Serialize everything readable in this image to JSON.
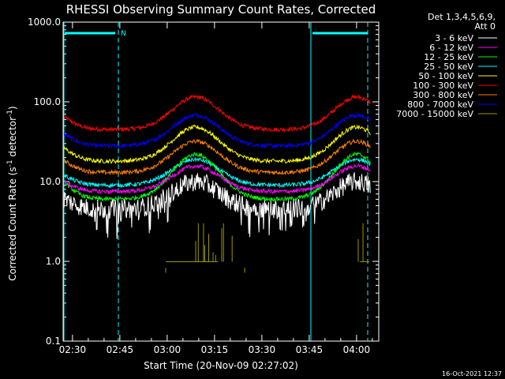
{
  "chart_data": {
    "type": "line",
    "title": "RHESSI Observing Summary Count Rates, Corrected",
    "xlabel": "Start Time (20-Nov-09 02:27:02)",
    "ylabel": "Corrected Count Rate (s⁻¹ detector⁻¹)",
    "ylabel_main": "Corrected Count Rate (s",
    "ylabel_sup1": "-1",
    "ylabel_mid": " detector",
    "ylabel_sup2": "-1",
    "ylabel_end": ")",
    "y_scale": "log",
    "ylim": [
      0.1,
      1000
    ],
    "xlim_minutes": [
      0,
      100
    ],
    "x_ticks": [
      "02:30",
      "02:45",
      "03:00",
      "03:15",
      "03:30",
      "03:45",
      "04:00"
    ],
    "y_ticks": [
      "0.1",
      "1.0",
      "10.0",
      "100.0",
      "1000.0"
    ],
    "grid": false,
    "legend_position": "top-right",
    "legend_header_1": "Det 1,3,4,5,6,9,",
    "legend_header_2": "Att 0",
    "timestamp": "16-Oct-2021 12:37",
    "night_marker": "N",
    "series": [
      {
        "name": "3 - 6 keV",
        "color": "#ffffff",
        "night": 4.5,
        "peak": 10
      },
      {
        "name": "6 - 12 keV",
        "color": "#ff00ff",
        "night": 7.5,
        "peak": 16
      },
      {
        "name": "12 - 25 keV",
        "color": "#00ff00",
        "night": 6,
        "peak": 22
      },
      {
        "name": "25 - 50 keV",
        "color": "#00ffff",
        "night": 9,
        "peak": 19
      },
      {
        "name": "50 - 100 keV",
        "color": "#ffff00",
        "night": 18,
        "peak": 48
      },
      {
        "name": "100 - 300 keV",
        "color": "#ff0000",
        "night": 45,
        "peak": 115
      },
      {
        "name": "300 - 800 keV",
        "color": "#ff8000",
        "night": 13,
        "peak": 32
      },
      {
        "name": "800 - 7000 keV",
        "color": "#0000ff",
        "night": 28,
        "peak": 68
      },
      {
        "name": "7000 - 15000 keV",
        "color": "#999900",
        "night": 0.7,
        "peak": 1.0
      }
    ]
  }
}
